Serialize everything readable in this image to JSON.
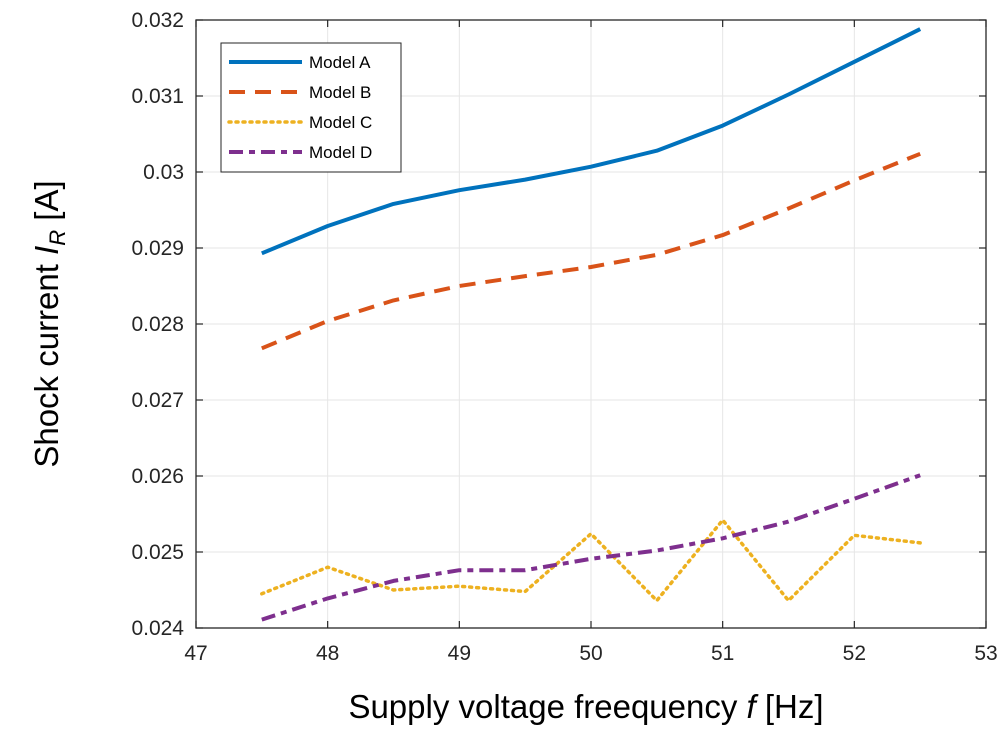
{
  "chart_data": {
    "type": "line",
    "title": "",
    "xlabel": "Supply voltage freequency",
    "xlabel_symbol": "f",
    "xlabel_unit": "[Hz]",
    "ylabel": "Shock current",
    "ylabel_symbol": "I",
    "ylabel_subscript": "R",
    "ylabel_unit": "[A]",
    "xlim": [
      47,
      53
    ],
    "ylim": [
      0.024,
      0.032
    ],
    "xticks": [
      47,
      48,
      49,
      50,
      51,
      52,
      53
    ],
    "xtick_labels": [
      "47",
      "48",
      "49",
      "50",
      "51",
      "52",
      "53"
    ],
    "yticks": [
      0.024,
      0.025,
      0.026,
      0.027,
      0.028,
      0.029,
      0.03,
      0.031,
      0.032
    ],
    "ytick_labels": [
      "0.024",
      "0.025",
      "0.026",
      "0.027",
      "0.028",
      "0.029",
      "0.03",
      "0.031",
      "0.032"
    ],
    "grid": true,
    "legend_position": "top-left",
    "x": [
      47.5,
      48,
      48.5,
      49,
      49.5,
      50,
      50.5,
      51,
      51.5,
      52,
      52.5
    ],
    "series": [
      {
        "name": "Model A",
        "color": "#0072BD",
        "style": "solid",
        "values": [
          0.02893,
          0.02929,
          0.02958,
          0.02976,
          0.0299,
          0.03007,
          0.03028,
          0.03061,
          0.03102,
          0.03145,
          0.03188
        ]
      },
      {
        "name": "Model B",
        "color": "#D95319",
        "style": "dashed",
        "values": [
          0.02768,
          0.02804,
          0.02831,
          0.0285,
          0.02863,
          0.02875,
          0.02891,
          0.02917,
          0.02952,
          0.02989,
          0.03024
        ]
      },
      {
        "name": "Model C",
        "color": "#EDB120",
        "style": "dotted",
        "values": [
          0.02445,
          0.0248,
          0.0245,
          0.02455,
          0.02448,
          0.02524,
          0.02436,
          0.02542,
          0.02436,
          0.02522,
          0.02512
        ]
      },
      {
        "name": "Model D",
        "color": "#7E2F8E",
        "style": "dashdot",
        "values": [
          0.02411,
          0.02439,
          0.02462,
          0.02476,
          0.02476,
          0.02491,
          0.02502,
          0.02518,
          0.0254,
          0.0257,
          0.02601
        ]
      }
    ]
  },
  "colors": {
    "axis": "#262626",
    "grid": "#e6e6e6",
    "background": "#ffffff"
  }
}
